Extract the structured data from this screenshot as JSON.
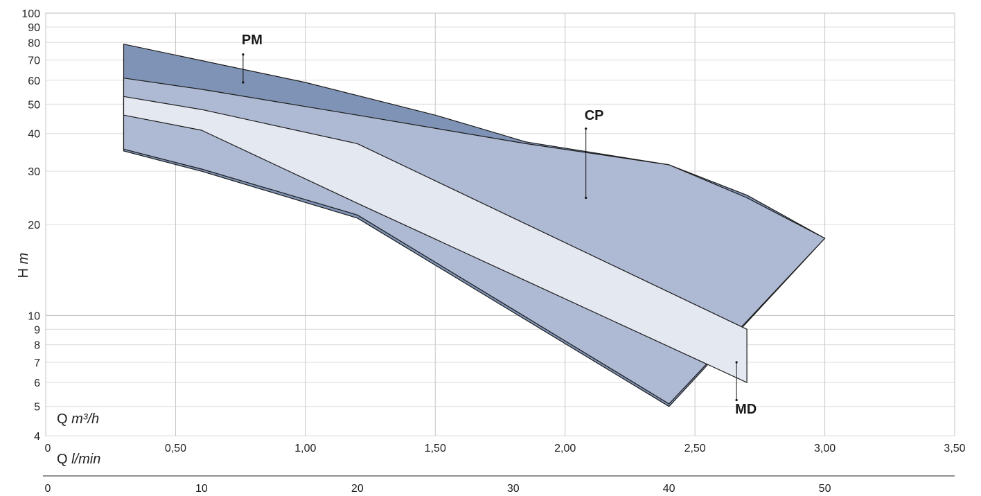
{
  "chart_data": {
    "type": "area",
    "yscale": "log",
    "ylim": [
      4,
      100
    ],
    "xlim": [
      0,
      3.5
    ],
    "grid": true,
    "ylabel": {
      "prefix": "H ",
      "unit": "m"
    },
    "y_ticks": [
      4,
      5,
      6,
      7,
      8,
      9,
      10,
      20,
      30,
      40,
      50,
      60,
      70,
      80,
      90,
      100
    ],
    "x_axis_primary": {
      "label_prefix": "Q ",
      "unit": "m³/h",
      "ticks": [
        0,
        0.5,
        1.0,
        1.5,
        2.0,
        2.5,
        3.0,
        3.5
      ],
      "tick_labels": [
        "0",
        "0,50",
        "1,00",
        "1,50",
        "2,00",
        "2,50",
        "3,00",
        "3,50"
      ]
    },
    "x_axis_secondary": {
      "label_prefix": "Q ",
      "unit": "l/min",
      "ticks": [
        0,
        10,
        20,
        30,
        40,
        50
      ],
      "tick_labels": [
        "0",
        "10",
        "20",
        "30",
        "40",
        "50"
      ]
    },
    "series": [
      {
        "name": "PM",
        "color": "#7f93b6",
        "outline": [
          [
            0.3,
            79
          ],
          [
            1.0,
            59
          ],
          [
            1.5,
            46
          ],
          [
            1.85,
            37.5
          ],
          [
            2.4,
            31.5
          ],
          [
            2.7,
            25
          ],
          [
            3.0,
            18
          ],
          [
            2.4,
            5
          ],
          [
            1.2,
            21
          ],
          [
            0.6,
            30
          ],
          [
            0.3,
            35
          ]
        ]
      },
      {
        "name": "CP",
        "color": "#aeb9d3",
        "outline": [
          [
            0.3,
            61
          ],
          [
            0.6,
            56
          ],
          [
            1.2,
            46
          ],
          [
            1.85,
            37
          ],
          [
            2.4,
            31.5
          ],
          [
            2.7,
            24.5
          ],
          [
            3.0,
            18
          ],
          [
            2.4,
            5.1
          ],
          [
            1.2,
            21.5
          ],
          [
            0.6,
            30.5
          ],
          [
            0.3,
            35.5
          ]
        ]
      },
      {
        "name": "MD",
        "color": "#e4e8f1",
        "outline": [
          [
            0.3,
            53
          ],
          [
            0.6,
            48
          ],
          [
            1.2,
            37
          ],
          [
            2.7,
            9
          ],
          [
            2.7,
            6
          ],
          [
            1.2,
            23.5
          ],
          [
            0.6,
            41
          ],
          [
            0.3,
            46
          ]
        ]
      }
    ],
    "annotations": [
      {
        "text": "PM",
        "at": [
          0.76,
          59
        ]
      },
      {
        "text": "CP",
        "at": [
          2.08,
          24.5
        ]
      },
      {
        "text": "MD",
        "at": [
          2.66,
          7
        ]
      }
    ]
  }
}
